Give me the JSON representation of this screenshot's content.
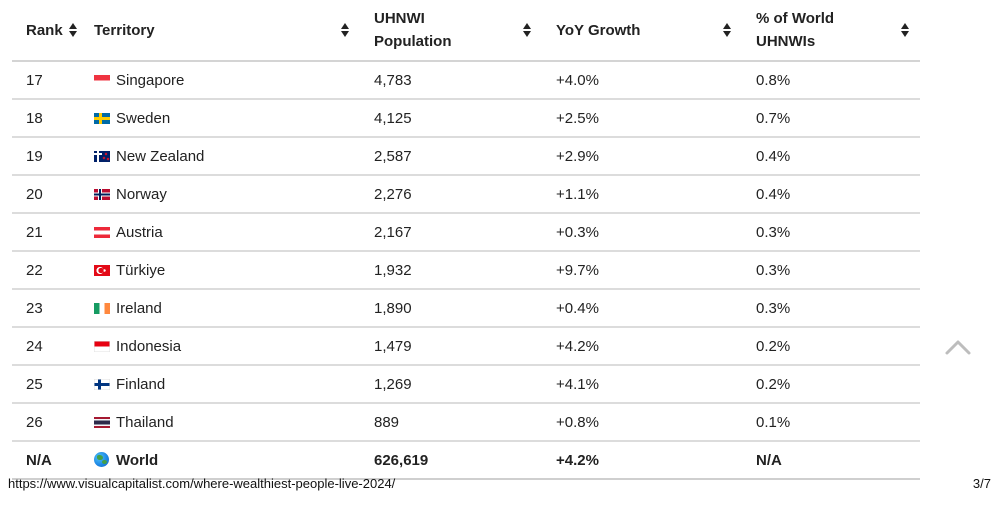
{
  "table": {
    "columns": [
      {
        "label_line1": "Rank",
        "label_line2": ""
      },
      {
        "label_line1": "Territory",
        "label_line2": ""
      },
      {
        "label_line1": "UHNWI",
        "label_line2": "Population"
      },
      {
        "label_line1": "YoY Growth",
        "label_line2": ""
      },
      {
        "label_line1": "% of World",
        "label_line2": "UHNWIs"
      }
    ],
    "rows": [
      {
        "rank": "17",
        "territory": "Singapore",
        "flag": "singapore-flag-icon",
        "population": "4,783",
        "growth": "+4.0%",
        "share": "0.8%"
      },
      {
        "rank": "18",
        "territory": "Sweden",
        "flag": "sweden-flag-icon",
        "population": "4,125",
        "growth": "+2.5%",
        "share": "0.7%"
      },
      {
        "rank": "19",
        "territory": "New Zealand",
        "flag": "new-zealand-flag-icon",
        "population": "2,587",
        "growth": "+2.9%",
        "share": "0.4%"
      },
      {
        "rank": "20",
        "territory": "Norway",
        "flag": "norway-flag-icon",
        "population": "2,276",
        "growth": "+1.1%",
        "share": "0.4%"
      },
      {
        "rank": "21",
        "territory": "Austria",
        "flag": "austria-flag-icon",
        "population": "2,167",
        "growth": "+0.3%",
        "share": "0.3%"
      },
      {
        "rank": "22",
        "territory": "Türkiye",
        "flag": "turkiye-flag-icon",
        "population": "1,932",
        "growth": "+9.7%",
        "share": "0.3%"
      },
      {
        "rank": "23",
        "territory": "Ireland",
        "flag": "ireland-flag-icon",
        "population": "1,890",
        "growth": "+0.4%",
        "share": "0.3%"
      },
      {
        "rank": "24",
        "territory": "Indonesia",
        "flag": "indonesia-flag-icon",
        "population": "1,479",
        "growth": "+4.2%",
        "share": "0.2%"
      },
      {
        "rank": "25",
        "territory": "Finland",
        "flag": "finland-flag-icon",
        "population": "1,269",
        "growth": "+4.1%",
        "share": "0.2%"
      },
      {
        "rank": "26",
        "territory": "Thailand",
        "flag": "thailand-flag-icon",
        "population": "889",
        "growth": "+0.8%",
        "share": "0.1%"
      }
    ],
    "total": {
      "rank": "N/A",
      "territory": "World",
      "icon": "globe-icon",
      "population": "626,619",
      "growth": "+4.2%",
      "share": "N/A"
    }
  },
  "footer": {
    "url": "https://www.visualcapitalist.com/where-wealthiest-people-live-2024/",
    "page": "3/7"
  },
  "icons": {
    "sort": "sort-arrows-icon",
    "scroll_top": "chevron-up-icon"
  },
  "colors": {
    "text": "#222222",
    "divider": "#dcdcdc",
    "scroll_icon": "#bdbdbd"
  }
}
